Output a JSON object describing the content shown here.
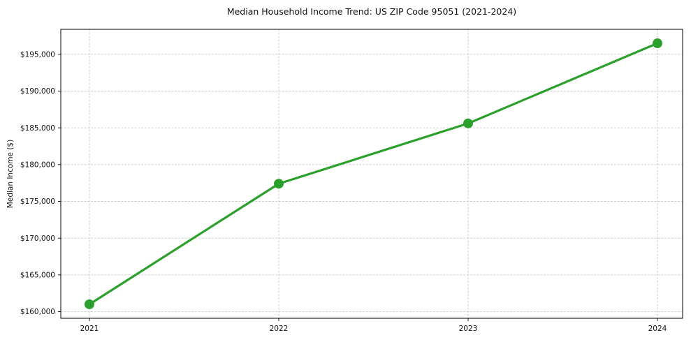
{
  "chart_data": {
    "type": "line",
    "title": "Median Household Income Trend: US ZIP Code 95051 (2021-2024)",
    "ylabel": "Median Income ($)",
    "xlabel": "",
    "categories": [
      "2021",
      "2022",
      "2023",
      "2024"
    ],
    "values": [
      161000,
      177400,
      185600,
      196500
    ],
    "ylim": [
      159100,
      198400
    ],
    "yticks": [
      160000,
      165000,
      170000,
      175000,
      180000,
      185000,
      190000,
      195000
    ],
    "ytick_labels": [
      "$160,000",
      "$165,000",
      "$170,000",
      "$175,000",
      "$180,000",
      "$185,000",
      "$190,000",
      "$195,000"
    ],
    "grid": true,
    "legend": false,
    "marker": "circle",
    "colors": {
      "line": "#2ca02c",
      "marker": "#2ca02c",
      "grid": "#c9c9c9",
      "axis": "#000000",
      "text": "#111111"
    }
  }
}
